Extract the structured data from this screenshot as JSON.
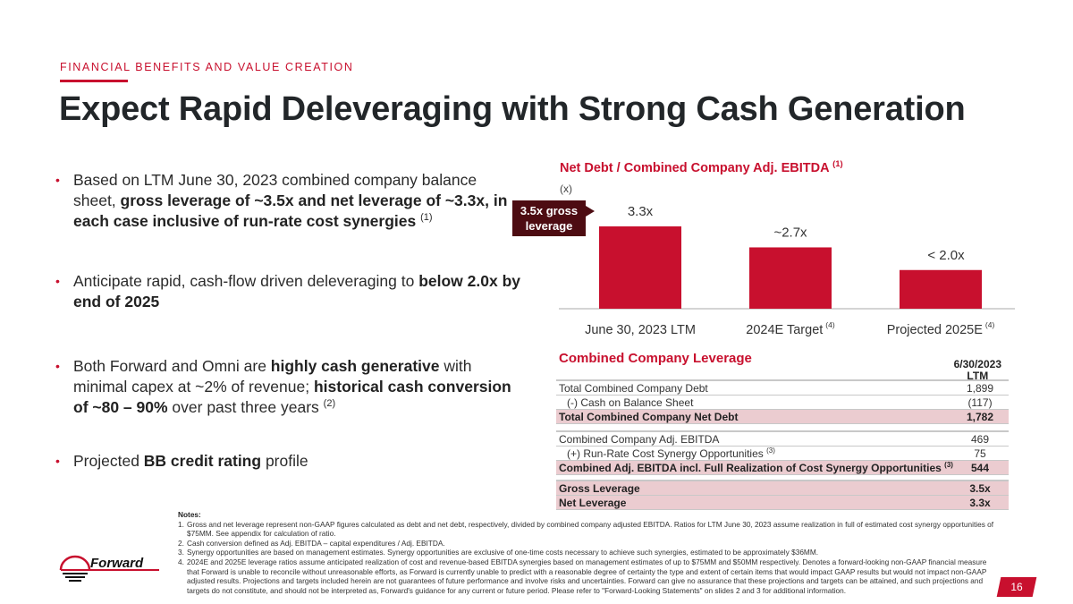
{
  "header": {
    "eyebrow": "FINANCIAL BENEFITS AND VALUE CREATION",
    "title": "Expect Rapid Deleveraging with Strong Cash Generation"
  },
  "bullets": [
    {
      "parts": [
        {
          "t": "Based on LTM June 30, 2023 combined company balance sheet, ",
          "b": false
        },
        {
          "t": "gross leverage of ~3.5x and net leverage of ~3.3x, in each case inclusive of run-rate cost synergies",
          "b": true
        }
      ],
      "sup": "(1)"
    },
    {
      "parts": [
        {
          "t": "Anticipate rapid, cash-flow driven deleveraging to ",
          "b": false
        },
        {
          "t": "below 2.0x by end of 2025",
          "b": true
        }
      ],
      "sup": ""
    },
    {
      "parts": [
        {
          "t": "Both Forward and Omni are ",
          "b": false
        },
        {
          "t": "highly cash generative",
          "b": true
        },
        {
          "t": " with minimal capex at ~2% of revenue; ",
          "b": false
        },
        {
          "t": "historical cash conversion of ~80 – 90%",
          "b": true
        },
        {
          "t": " over past three years",
          "b": false
        }
      ],
      "sup": "(2)"
    },
    {
      "parts": [
        {
          "t": "Projected ",
          "b": false
        },
        {
          "t": "BB credit rating",
          "b": true
        },
        {
          "t": " profile",
          "b": false
        }
      ],
      "sup": ""
    }
  ],
  "chart_data": {
    "type": "bar",
    "title": "Net Debt / Combined Company Adj. EBITDA",
    "title_sup": "(1)",
    "unit_label": "(x)",
    "categories": [
      "June 30, 2023 LTM",
      "2024E Target",
      "Projected 2025E"
    ],
    "category_sups": [
      "",
      "(4)",
      "(4)"
    ],
    "values": [
      3.3,
      2.7,
      2.0
    ],
    "data_labels": [
      "3.3x",
      "~2.7x",
      "< 2.0x"
    ],
    "ylim": [
      0,
      3.5
    ],
    "color": "#c8102e",
    "annotation": "3.5x gross leverage",
    "annotation_color": "#4d0c12"
  },
  "table": {
    "title": "Combined Company Leverage",
    "column_header": [
      "6/30/2023",
      "LTM"
    ],
    "groups": [
      [
        {
          "label": "Total Combined Company Debt",
          "value": "1,899",
          "indent": false,
          "highlight": false,
          "sup": ""
        },
        {
          "label": "(-) Cash on Balance Sheet",
          "value": "(117)",
          "indent": true,
          "highlight": false,
          "sup": ""
        },
        {
          "label": "Total Combined Company Net Debt",
          "value": "1,782",
          "indent": false,
          "highlight": true,
          "sup": ""
        }
      ],
      [
        {
          "label": "Combined Company Adj. EBITDA",
          "value": "469",
          "indent": false,
          "highlight": false,
          "sup": ""
        },
        {
          "label": "(+) Run-Rate Cost Synergy Opportunities",
          "value": "75",
          "indent": true,
          "highlight": false,
          "sup": "(3)"
        },
        {
          "label": "Combined Adj. EBITDA incl. Full Realization of Cost Synergy Opportunities",
          "value": "544",
          "indent": false,
          "highlight": true,
          "sup": "(3)"
        }
      ],
      [
        {
          "label": "Gross Leverage",
          "value": "3.5x",
          "indent": false,
          "highlight": true,
          "sup": ""
        },
        {
          "label": "Net Leverage",
          "value": "3.3x",
          "indent": false,
          "highlight": true,
          "sup": ""
        }
      ]
    ]
  },
  "notes": {
    "header": "Notes:",
    "items": [
      "Gross and net leverage represent non-GAAP figures calculated as debt and net debt, respectively, divided by combined company adjusted EBITDA. Ratios for LTM June 30, 2023 assume realization in full of estimated cost synergy opportunities of $75MM. See appendix for calculation of ratio.",
      "Cash conversion defined as Adj. EBITDA – capital expenditures / Adj. EBITDA.",
      "Synergy opportunities are based on management estimates. Synergy opportunities are exclusive of one-time costs necessary to achieve such synergies, estimated to be approximately $36MM.",
      "2024E and 2025E leverage ratios assume anticipated realization of cost and revenue-based EBITDA synergies based on management estimates of up to $75MM and $50MM respectively. Denotes a forward-looking non-GAAP financial measure that Forward is unable to reconcile without unreasonable efforts, as Forward is currently unable to predict with a reasonable degree of certainty the type and extent of certain items that would impact GAAP results but would not impact non-GAAP adjusted results. Projections and targets included herein are not guarantees of future performance and involve risks and uncertainties.  Forward can give no assurance that these projections and targets can be attained, and such projections and targets do not constitute, and should not be interpreted as, Forward's guidance for any current or future period.  Please refer to \"Forward-Looking Statements\" on slides 2 and 3 for additional information."
    ]
  },
  "footer": {
    "logo_text": "Forward",
    "page_number": "16"
  },
  "colors": {
    "brand_red": "#c8102e",
    "dark_maroon": "#4d0c12",
    "highlight_row": "#ebccd0"
  }
}
